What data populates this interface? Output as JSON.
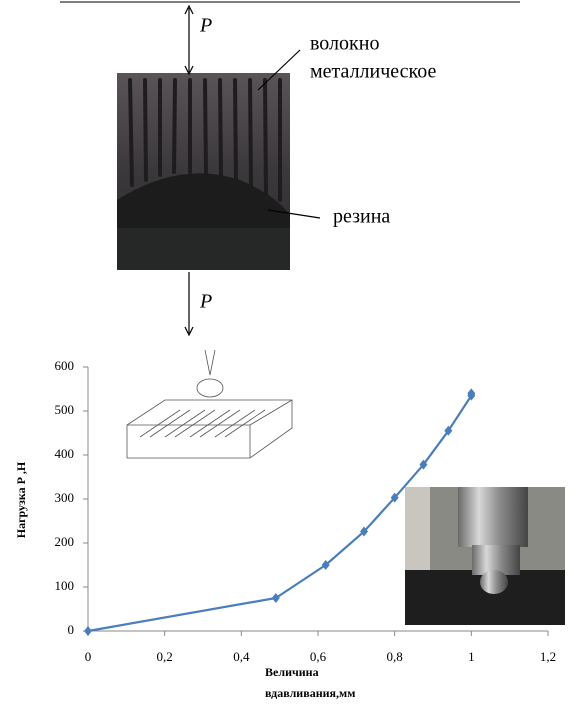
{
  "figure": {
    "load_top": "P",
    "fiber_label_1": "волокно",
    "fiber_label_2": "металлическое",
    "rubber_label": "резина",
    "load_bottom": "P"
  },
  "chart_data": {
    "type": "line",
    "x_label": "Величина вдавливания,мм",
    "y_label": "Нагрузка Р ,Н",
    "series": [
      {
        "color": "#4a7ebb",
        "x": [
          0,
          0.49,
          0.62,
          0.72,
          0.8,
          0.875,
          0.94,
          1.0,
          1.0
        ],
        "values": [
          0,
          75,
          150,
          226,
          303,
          378,
          455,
          535,
          540
        ]
      }
    ],
    "xlim": [
      0,
      1.2
    ],
    "xticks": [
      0,
      {
        "value": 0.2,
        "label": "0,2"
      },
      {
        "value": 0.4,
        "label": "0,4"
      },
      {
        "value": 0.6,
        "label": "0,6"
      },
      {
        "value": 0.8,
        "label": "0,8"
      },
      1,
      {
        "value": 1.2,
        "label": "1,2"
      }
    ],
    "ylim": [
      0,
      600
    ],
    "yticks": [
      0,
      100,
      200,
      300,
      400,
      500,
      600
    ]
  }
}
